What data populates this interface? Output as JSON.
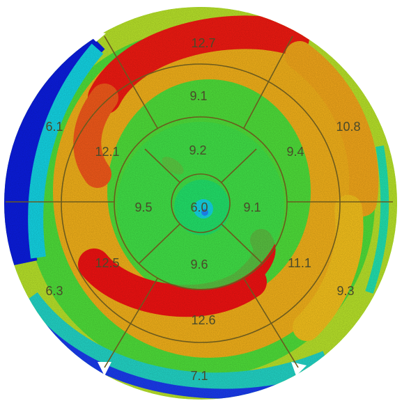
{
  "chart_data": {
    "type": "heatmap",
    "subtype": "polar-bullseye-map",
    "title": "",
    "colorscale": [
      "#0b1de0",
      "#1e8cff",
      "#13d6e6",
      "#22e36a",
      "#7fe02c",
      "#d8e81e",
      "#f4b21a",
      "#f4561a",
      "#f21212"
    ],
    "rings": [
      {
        "ring": "outer",
        "segments": [
          {
            "position": "top",
            "value": 12.7
          },
          {
            "position": "upper-right",
            "value": 10.8
          },
          {
            "position": "lower-right",
            "value": 9.3
          },
          {
            "position": "bottom",
            "value": 7.1
          },
          {
            "position": "lower-left",
            "value": 6.3
          },
          {
            "position": "upper-left",
            "value": 6.1
          }
        ]
      },
      {
        "ring": "second",
        "segments": [
          {
            "position": "top",
            "value": 9.1
          },
          {
            "position": "upper-right",
            "value": 9.4
          },
          {
            "position": "lower-right",
            "value": 11.1
          },
          {
            "position": "bottom",
            "value": 12.6
          },
          {
            "position": "lower-left",
            "value": 12.5
          },
          {
            "position": "upper-left",
            "value": 12.1
          }
        ]
      },
      {
        "ring": "third",
        "segments": [
          {
            "position": "top",
            "value": 9.2
          },
          {
            "position": "right",
            "value": 9.1
          },
          {
            "position": "bottom",
            "value": 9.6
          },
          {
            "position": "left",
            "value": 9.5
          }
        ]
      },
      {
        "ring": "center",
        "segments": [
          {
            "position": "center",
            "value": 6.0
          }
        ]
      }
    ],
    "labels": {
      "outer_top": "12.7",
      "outer_upper_right": "10.8",
      "outer_lower_right": "9.3",
      "outer_bottom": "7.1",
      "outer_lower_left": "6.3",
      "outer_upper_left": "6.1",
      "second_top": "9.1",
      "second_upper_right": "9.4",
      "second_lower_right": "11.1",
      "second_bottom": "12.6",
      "second_lower_left": "12.5",
      "second_upper_left": "12.1",
      "third_top": "9.2",
      "third_right": "9.1",
      "third_bottom": "9.6",
      "third_left": "9.5",
      "center": "6.0"
    },
    "legend": "none",
    "grid": true
  }
}
